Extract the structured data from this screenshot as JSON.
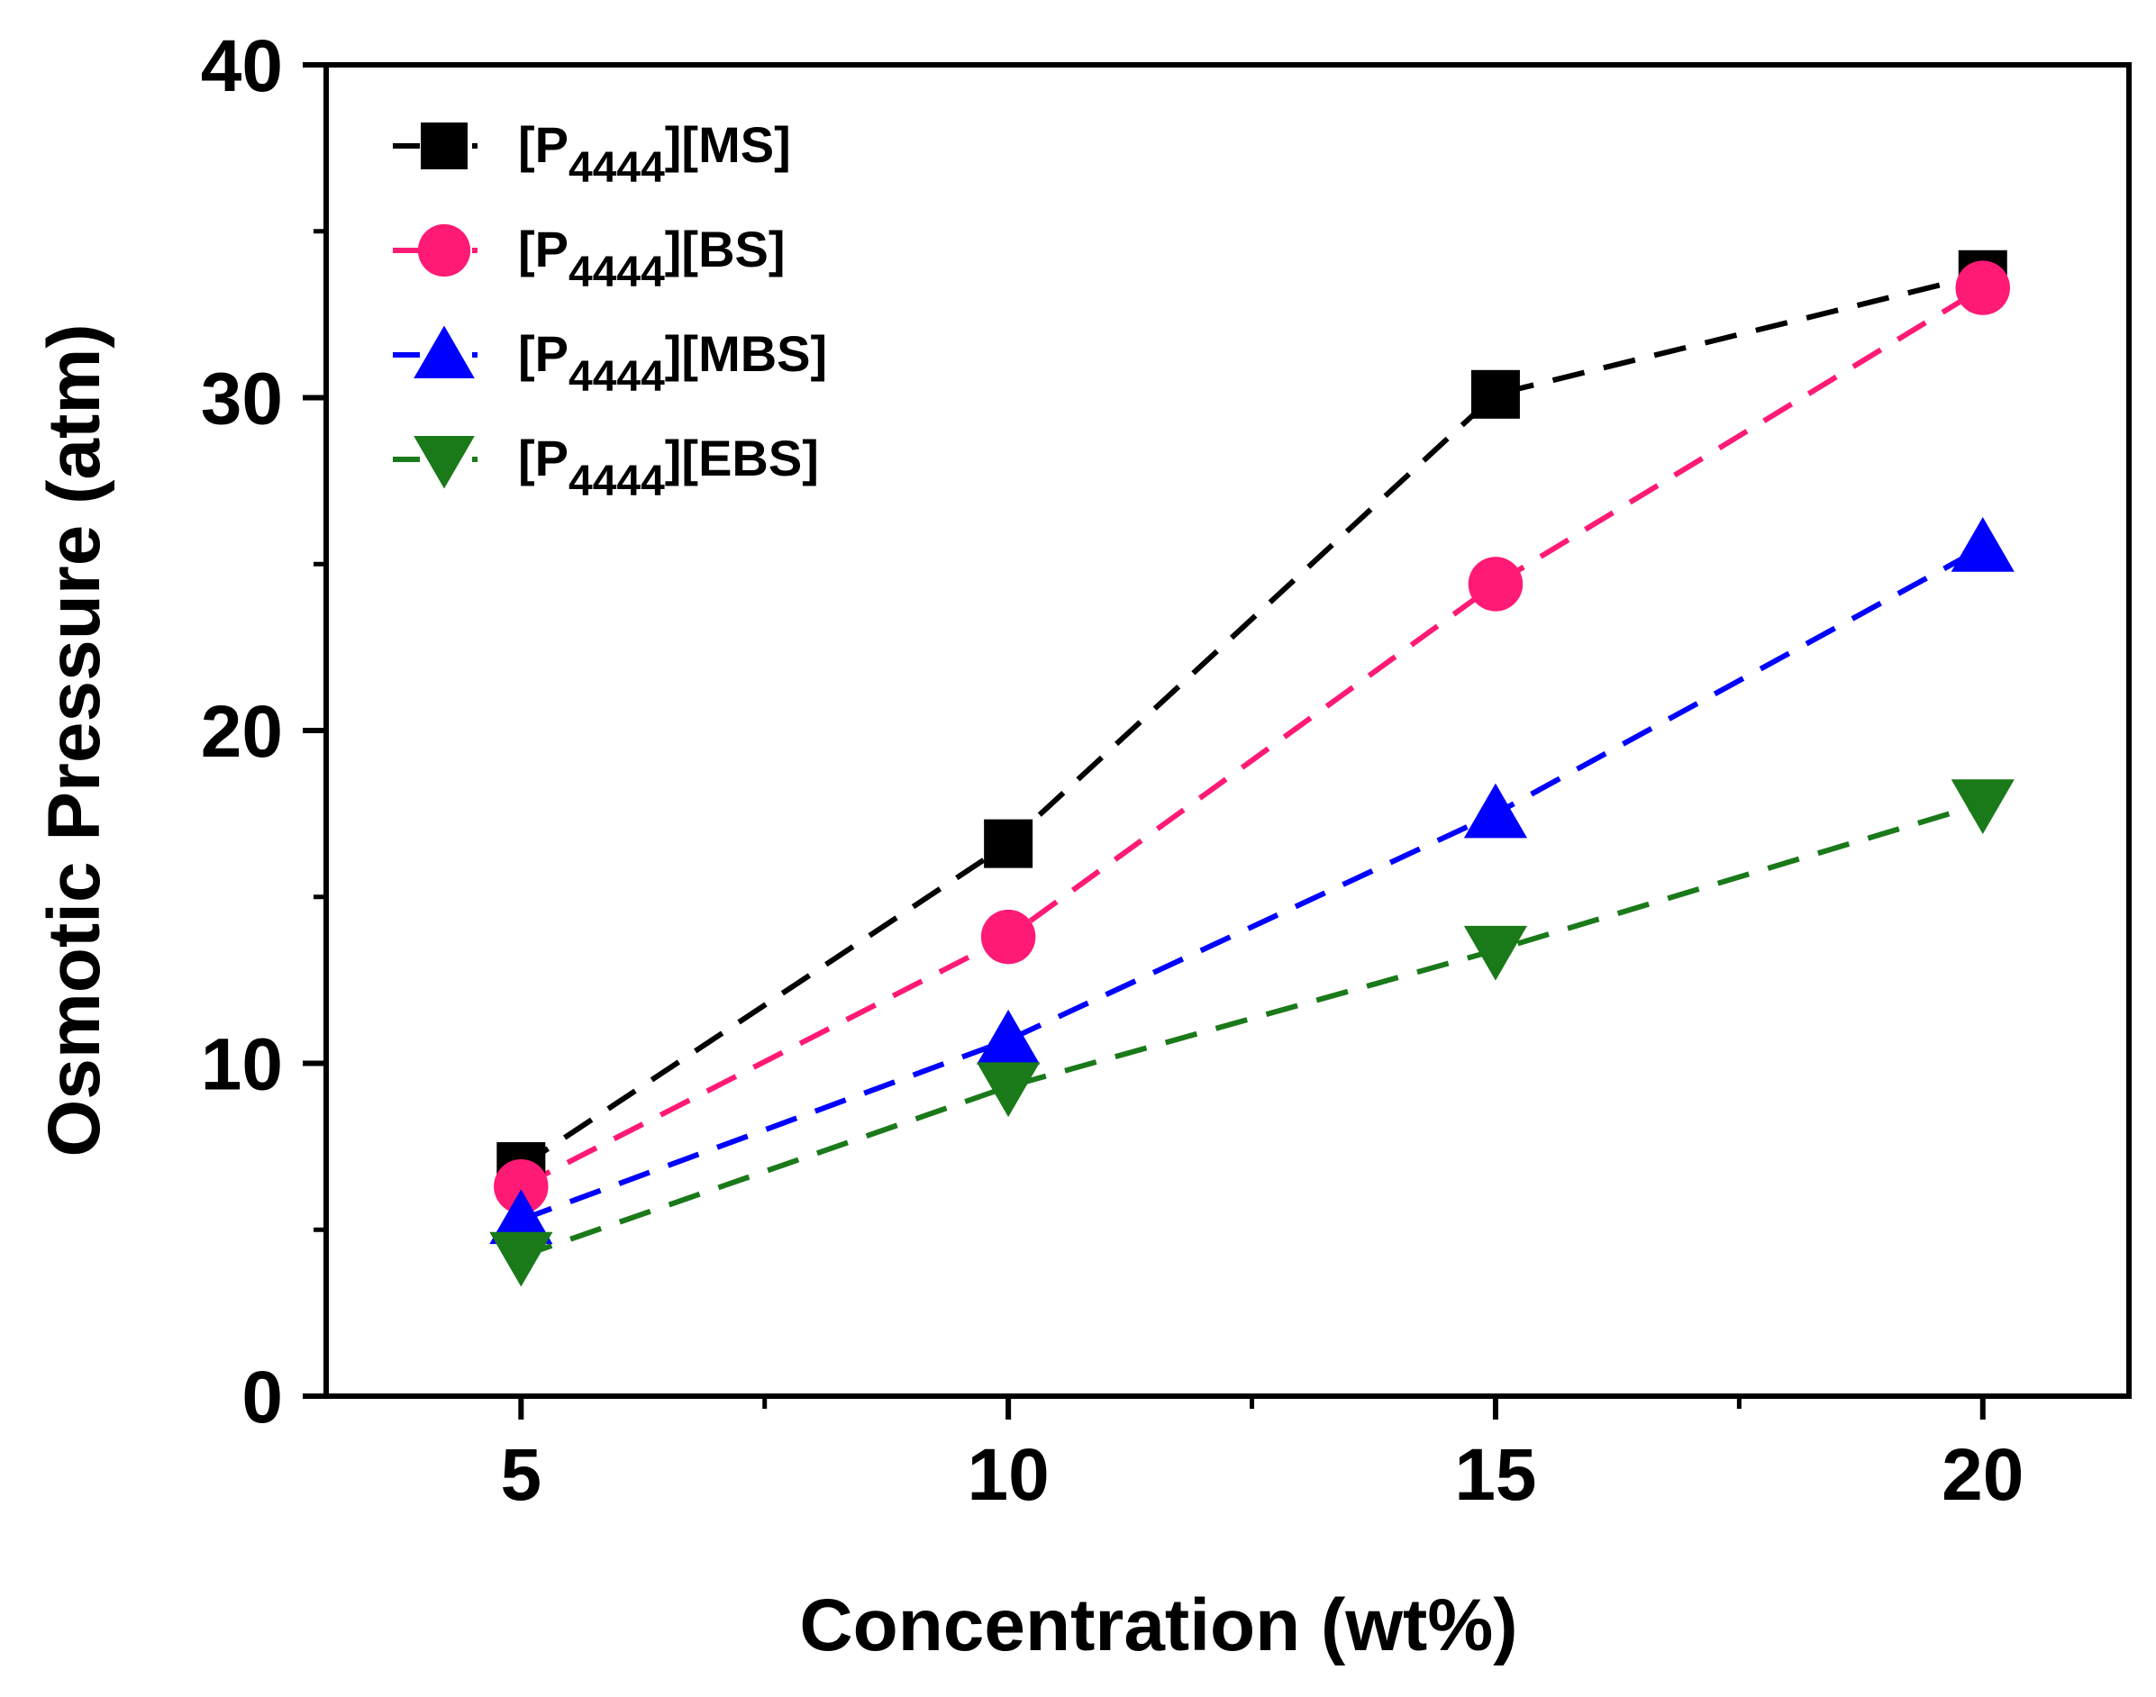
{
  "chart_data": {
    "type": "line",
    "title": "",
    "xlabel": "Concentration (wt%)",
    "ylabel": "Osmotic Pressure (atm)",
    "xlim": [
      3,
      21.5
    ],
    "ylim": [
      0,
      40
    ],
    "xticks": [
      5,
      10,
      15,
      20
    ],
    "yticks": [
      0,
      10,
      20,
      30,
      40
    ],
    "x": [
      5,
      10,
      15,
      20
    ],
    "legend_position": "top-left",
    "grid": false,
    "series": [
      {
        "name": "[P4444][MS]",
        "label_main": "[P",
        "label_sub": "4444",
        "label_tail": "][MS]",
        "values": [
          6.9,
          16.6,
          30.1,
          33.7
        ],
        "color": "#000000",
        "marker": "square"
      },
      {
        "name": "[P4444][BS]",
        "label_main": "[P",
        "label_sub": "4444",
        "label_tail": "][BS]",
        "values": [
          6.3,
          13.8,
          24.4,
          33.3
        ],
        "color": "#ff1a75",
        "marker": "circle"
      },
      {
        "name": "[P4444][MBS]",
        "label_main": "[P",
        "label_sub": "4444",
        "label_tail": "][MBS]",
        "values": [
          5.3,
          10.7,
          17.5,
          25.5
        ],
        "color": "#0000ff",
        "marker": "triangle-up"
      },
      {
        "name": "[P4444][EBS]",
        "label_main": "[P",
        "label_sub": "4444",
        "label_tail": "][EBS]",
        "values": [
          4.2,
          9.3,
          13.4,
          17.8
        ],
        "color": "#1a7a1a",
        "marker": "triangle-down"
      }
    ]
  }
}
